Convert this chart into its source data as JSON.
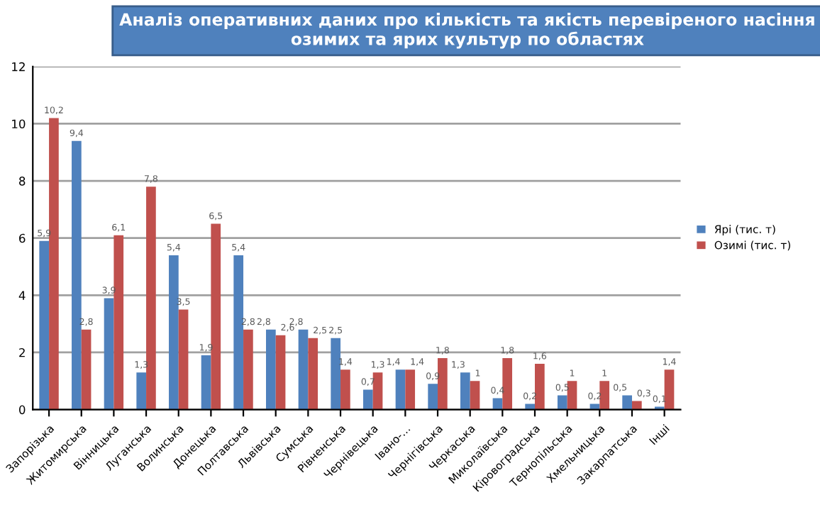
{
  "chart_data": {
    "type": "bar",
    "title": "Аналіз оперативних даних про кількість та якість перевіреного насіння озимих та ярих культур по областях",
    "categories": [
      "Запорізька",
      "Житомирська",
      "Вінницька",
      "Луганська",
      "Волинська",
      "Донецька",
      "Полтавська",
      "Львівська",
      "Сумська",
      "Рівненська",
      "Чернівецька",
      "Івано-…",
      "Чернігівська",
      "Черкаська",
      "Миколаївська",
      "Кіровоградська",
      "Тернопільська",
      "Хмельницька",
      "Закарпатська",
      "Інші"
    ],
    "series": [
      {
        "name": "Ярі (тис. т)",
        "color": "#4f81bd",
        "values": [
          5.9,
          9.4,
          3.9,
          1.3,
          5.4,
          1.9,
          5.4,
          2.8,
          2.8,
          2.5,
          0.7,
          1.4,
          0.9,
          1.3,
          0.4,
          0.2,
          0.5,
          0.2,
          0.5,
          0.1
        ],
        "value_labels": [
          "5,9",
          "9,4",
          "3,9",
          "1,3",
          "5,4",
          "1,9",
          "5,4",
          "2,8",
          "2,8",
          "2,5",
          "0,7",
          "1,4",
          "0,9",
          "1,3",
          "0,4",
          "0,2",
          "0,5",
          "0,2",
          "0,5",
          "0,1"
        ]
      },
      {
        "name": "Озимі (тис. т)",
        "color": "#c0504d",
        "values": [
          10.2,
          2.8,
          6.1,
          7.8,
          3.5,
          6.5,
          2.8,
          2.6,
          2.5,
          1.4,
          1.3,
          1.4,
          1.8,
          1,
          1.8,
          1.6,
          1,
          1,
          0.3,
          1.4
        ],
        "value_labels": [
          "10,2",
          "2,8",
          "6,1",
          "7,8",
          "3,5",
          "6,5",
          "2,8",
          "2,6",
          "2,5",
          "1,4",
          "1,3",
          "1,4",
          "1,8",
          "1",
          "1,8",
          "1,6",
          "1",
          "1",
          "0,3",
          "1,4"
        ]
      }
    ],
    "ylim": [
      0,
      12
    ],
    "yticks": [
      0,
      2,
      4,
      6,
      8,
      10,
      12
    ],
    "grid": "y",
    "legend": "right"
  }
}
